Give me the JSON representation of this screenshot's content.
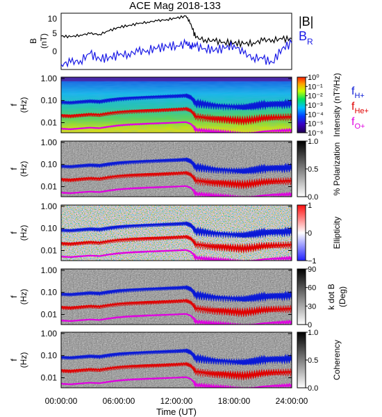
{
  "title": "ACE Mag 2018-133",
  "xlabel": "Time (UT)",
  "xticks": [
    "00:00:00",
    "06:00:00",
    "12:00:00",
    "18:00:00",
    "24:00:00"
  ],
  "colors": {
    "hplus": "#0a1ad6",
    "heplus": "#e00000",
    "oplus": "#e000e0",
    "babs": "#000000",
    "br": "#1a1ae6"
  },
  "chart_data": [
    {
      "type": "line",
      "panel": "magnetic field",
      "ylabel": [
        "B",
        "(nT)"
      ],
      "yticks": [
        "0",
        "5",
        "10"
      ],
      "ylim": [
        -4,
        12
      ],
      "x_hours": [
        0,
        1,
        2,
        3,
        4,
        5,
        6,
        7,
        8,
        9,
        10,
        11,
        12,
        13,
        13.5,
        14,
        15,
        16,
        17,
        18,
        19,
        20,
        21,
        22,
        23,
        24
      ],
      "series": [
        {
          "name": "|B|",
          "values": [
            5.5,
            5.3,
            5.8,
            6.2,
            6.0,
            7.0,
            8.0,
            8.5,
            9.0,
            9.5,
            9.8,
            10.2,
            10.6,
            11.2,
            9.0,
            5.0,
            4.5,
            4.0,
            3.8,
            3.5,
            3.3,
            3.6,
            4.2,
            4.5,
            4.6,
            4.8
          ]
        },
        {
          "name": "B",
          "name_sub": "R",
          "values": [
            -2.5,
            -2.0,
            -1.5,
            0.5,
            -1.0,
            -0.5,
            0.0,
            0.5,
            1.0,
            1.5,
            2.0,
            2.5,
            2.8,
            3.2,
            3.0,
            2.5,
            2.0,
            1.5,
            2.0,
            3.0,
            0.5,
            -0.5,
            -1.0,
            -2.0,
            2.0,
            3.5
          ]
        }
      ]
    },
    {
      "type": "heatmap",
      "panel": "intensity spectrogram",
      "ylabel": [
        "f",
        "(Hz)"
      ],
      "yticks": [
        "1.00",
        "0.10",
        "0.01"
      ],
      "colorbar_label": "Intensity (nT²/Hz)",
      "colorbar_ticks": [
        "10⁰",
        "10⁻¹",
        "10⁻²",
        "10⁻³",
        "10⁻⁴",
        "10⁻⁵",
        "10⁻⁶"
      ],
      "legend": [
        {
          "base": "f",
          "sub": "H+"
        },
        {
          "base": "f",
          "sub": "He+"
        },
        {
          "base": "f",
          "sub": "O+"
        }
      ]
    },
    {
      "type": "heatmap",
      "panel": "polarization",
      "ylabel": [
        "f",
        "(Hz)"
      ],
      "yticks": [
        "1.00",
        "0.10",
        "0.01"
      ],
      "colorbar_label": "% Polarization",
      "colorbar_ticks": [
        "1.0",
        "0.5",
        "0.0"
      ]
    },
    {
      "type": "heatmap",
      "panel": "ellipticity",
      "ylabel": [
        "f",
        "(Hz)"
      ],
      "yticks": [
        "1.00",
        "0.10",
        "0.01"
      ],
      "colorbar_label": "Ellipticity",
      "colorbar_ticks": [
        "1",
        "0",
        "−1"
      ]
    },
    {
      "type": "heatmap",
      "panel": "wave normal angle",
      "ylabel": [
        "f",
        "(Hz)"
      ],
      "yticks": [
        "1.00",
        "0.10",
        "0.01"
      ],
      "colorbar_label": [
        "k dot B",
        "(Deg)"
      ],
      "colorbar_ticks": [
        "90",
        "60",
        "30",
        "0"
      ]
    },
    {
      "type": "heatmap",
      "panel": "coherency",
      "ylabel": [
        "f",
        "(Hz)"
      ],
      "yticks": [
        "1.00",
        "0.10",
        "0.01"
      ],
      "colorbar_label": "Coherency",
      "colorbar_ticks": [
        "1.0",
        "0.5",
        "0.0"
      ]
    }
  ],
  "gyrofrequency_lines": {
    "x_hours": [
      0,
      1,
      2,
      3,
      4,
      5,
      6,
      7,
      8,
      9,
      10,
      11,
      12,
      13,
      13.5,
      14,
      15,
      16,
      17,
      18,
      19,
      20,
      21,
      22,
      23,
      24
    ],
    "fH_Hz": [
      0.085,
      0.081,
      0.088,
      0.095,
      0.09,
      0.106,
      0.12,
      0.13,
      0.137,
      0.144,
      0.149,
      0.155,
      0.161,
      0.17,
      0.14,
      0.076,
      0.068,
      0.061,
      0.058,
      0.053,
      0.05,
      0.055,
      0.064,
      0.068,
      0.07,
      0.073
    ]
  }
}
